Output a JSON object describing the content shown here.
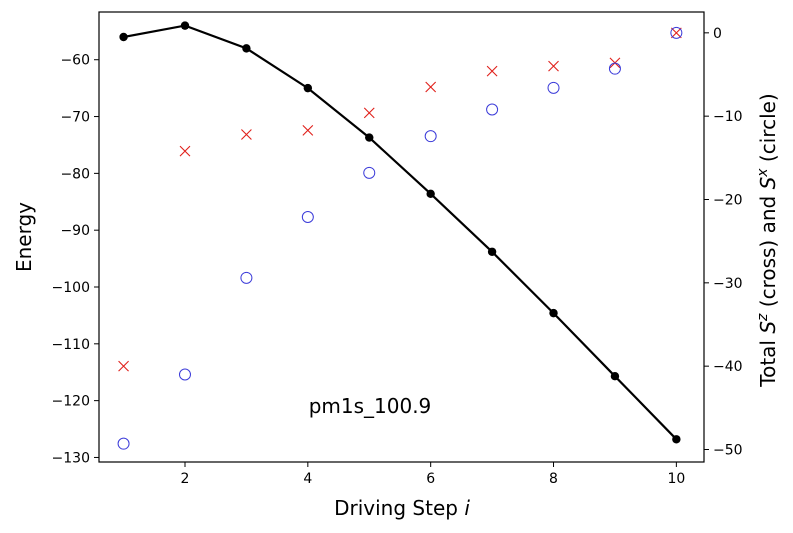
{
  "chart_data": {
    "type": "line",
    "annotation": "pm1s_100.9",
    "x_axis": {
      "label_text": "Driving Step ",
      "label_var": "i",
      "ticks": [
        2,
        4,
        6,
        8,
        10
      ],
      "range": [
        0.6,
        10.45
      ]
    },
    "y_left": {
      "label": "Energy",
      "ticks": [
        -60,
        -70,
        -80,
        -90,
        -100,
        -110,
        -120,
        -130
      ],
      "range": [
        -130.8,
        -51.6
      ]
    },
    "y_right": {
      "label_parts": [
        {
          "t": "Total "
        },
        {
          "t": "S",
          "italic": true
        },
        {
          "t": "z",
          "italic": true,
          "sup": true
        },
        {
          "t": " (cross) and "
        },
        {
          "t": "S",
          "italic": true
        },
        {
          "t": "x",
          "italic": true,
          "sup": true
        },
        {
          "t": " (circle)"
        }
      ],
      "ticks": [
        0,
        -10,
        -20,
        -30,
        -40,
        -50
      ],
      "range": [
        -51.5,
        2.5
      ]
    },
    "x": [
      1,
      2,
      3,
      4,
      5,
      6,
      7,
      8,
      9,
      10
    ],
    "series": [
      {
        "axis": "left",
        "marker": "dot",
        "line": true,
        "color": "#000000",
        "values": [
          -56.0,
          -54.0,
          -58.0,
          -65.0,
          -73.7,
          -83.6,
          -93.8,
          -104.6,
          -115.7,
          -126.8
        ]
      },
      {
        "axis": "right",
        "marker": "cross",
        "line": false,
        "color": "#e0201b",
        "values": [
          -40.0,
          -14.2,
          -12.2,
          -11.7,
          -9.6,
          -6.5,
          -4.6,
          -4.0,
          -3.6,
          0.0
        ]
      },
      {
        "axis": "right",
        "marker": "circle",
        "line": false,
        "color": "#3b3bd9",
        "values": [
          -49.3,
          -41.0,
          -29.4,
          -22.1,
          -16.8,
          -12.4,
          -9.2,
          -6.6,
          -4.3,
          0.0
        ]
      }
    ]
  }
}
